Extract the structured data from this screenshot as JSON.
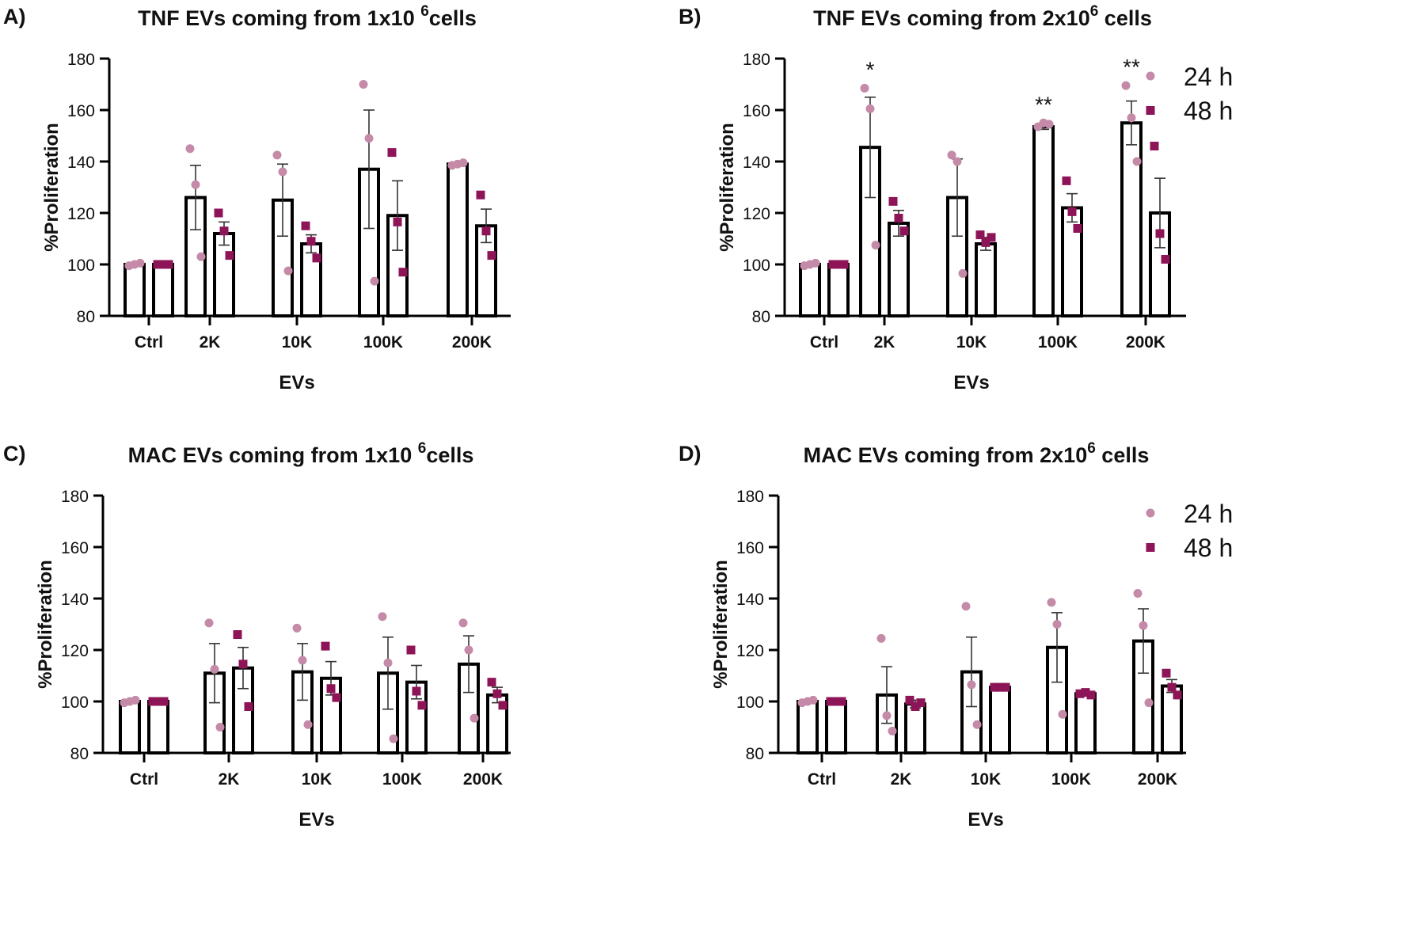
{
  "colors": {
    "series_24h": "#c48aa8",
    "series_48h": "#8e1458",
    "bar_stroke": "#000000",
    "axis": "#000000",
    "text": "#111111"
  },
  "legend": [
    "24 h",
    "48 h"
  ],
  "chart_data": [
    {
      "panel_label": "A)",
      "title_pre": "TNF EVs coming from 1x10 ",
      "title_sup": "6",
      "title_post": "cells",
      "type": "bar",
      "xlabel": "EVs",
      "ylabel": "%Proliferation",
      "ylim": [
        80,
        180
      ],
      "yticks": [
        80,
        100,
        120,
        140,
        160,
        180
      ],
      "categories": [
        "Ctrl",
        "2K",
        "10K",
        "100K",
        "200K"
      ],
      "series": [
        {
          "name": "24 h",
          "values": [
            100,
            126,
            125,
            137,
            139
          ],
          "sem": [
            0,
            12.5,
            14,
            23,
            0.5
          ],
          "points": [
            [
              99.5,
              100,
              100.5
            ],
            [
              145,
              131,
              103
            ],
            [
              142.5,
              136,
              97.5
            ],
            [
              170,
              149,
              93.5
            ],
            [
              138.5,
              139,
              139.5
            ]
          ]
        },
        {
          "name": "48 h",
          "values": [
            100,
            112,
            108,
            119,
            115
          ],
          "sem": [
            0,
            4.5,
            3.5,
            13.5,
            6.5
          ],
          "points": [
            [
              100,
              100,
              100
            ],
            [
              120,
              113,
              103.5
            ],
            [
              115,
              109,
              102.5
            ],
            [
              143.5,
              116.5,
              97
            ],
            [
              127,
              113,
              103.5
            ]
          ]
        }
      ],
      "annotations": [
        "",
        "",
        "",
        "",
        ""
      ],
      "show_legend": false
    },
    {
      "panel_label": "B)",
      "title_pre": "TNF EVs coming from 2x10",
      "title_sup": "6",
      "title_post": " cells",
      "type": "bar",
      "xlabel": "EVs",
      "ylabel": "%Proliferation",
      "ylim": [
        80,
        180
      ],
      "yticks": [
        80,
        100,
        120,
        140,
        160,
        180
      ],
      "categories": [
        "Ctrl",
        "2K",
        "10K",
        "100K",
        "200K"
      ],
      "series": [
        {
          "name": "24 h",
          "values": [
            100,
            145.5,
            126,
            153.5,
            155
          ],
          "sem": [
            0,
            19.5,
            15,
            1,
            8.5
          ],
          "points": [
            [
              99.5,
              100,
              100.5
            ],
            [
              168.5,
              160.5,
              107.5
            ],
            [
              142.5,
              140,
              96.5
            ],
            [
              153.5,
              155,
              154.5
            ],
            [
              169.5,
              157,
              140
            ]
          ]
        },
        {
          "name": "48 h",
          "values": [
            100,
            116,
            108,
            122,
            120
          ],
          "sem": [
            0,
            5,
            2.5,
            5.5,
            13.5
          ],
          "points": [
            [
              100,
              100,
              100
            ],
            [
              124.5,
              118,
              113
            ],
            [
              111.5,
              108.5,
              110.5
            ],
            [
              132.5,
              120.5,
              114
            ],
            [
              146,
              112,
              102
            ]
          ]
        }
      ],
      "annotations": [
        "",
        "*",
        "",
        "**",
        "**"
      ],
      "show_legend": true
    },
    {
      "panel_label": "C)",
      "title_pre": "MAC EVs coming from  1x10 ",
      "title_sup": "6",
      "title_post": "cells",
      "type": "bar",
      "xlabel": "EVs",
      "ylabel": "%Proliferation",
      "ylim": [
        80,
        180
      ],
      "yticks": [
        80,
        100,
        120,
        140,
        160,
        180
      ],
      "categories": [
        "Ctrl",
        "2K",
        "10K",
        "100K",
        "200K"
      ],
      "series": [
        {
          "name": "24 h",
          "values": [
            100,
            111,
            111.5,
            111,
            114.5
          ],
          "sem": [
            0,
            11.5,
            11,
            14,
            11
          ],
          "points": [
            [
              99.5,
              100,
              100.5
            ],
            [
              130.5,
              112.5,
              90
            ],
            [
              128.5,
              116,
              91
            ],
            [
              133,
              115,
              85.5
            ],
            [
              130.5,
              120,
              93.5
            ]
          ]
        },
        {
          "name": "48 h",
          "values": [
            100,
            113,
            109,
            107.5,
            102.5
          ],
          "sem": [
            0,
            8,
            6.5,
            6.5,
            3
          ],
          "points": [
            [
              100,
              100,
              100
            ],
            [
              126,
              114.5,
              98
            ],
            [
              121.5,
              105,
              101.5
            ],
            [
              120,
              104,
              98.5
            ],
            [
              107.5,
              103,
              98.5
            ]
          ]
        }
      ],
      "annotations": [
        "",
        "",
        "",
        "",
        ""
      ],
      "show_legend": false
    },
    {
      "panel_label": "D)",
      "title_pre": "MAC EVs coming from 2x10",
      "title_sup": "6",
      "title_post": " cells",
      "type": "bar",
      "xlabel": "EVs",
      "ylabel": "%Proliferation",
      "ylim": [
        80,
        180
      ],
      "yticks": [
        80,
        100,
        120,
        140,
        160,
        180
      ],
      "categories": [
        "Ctrl",
        "2K",
        "10K",
        "100K",
        "200K"
      ],
      "series": [
        {
          "name": "24 h",
          "values": [
            100,
            102.5,
            111.5,
            121,
            123.5
          ],
          "sem": [
            0,
            11,
            13.5,
            13.5,
            12.5
          ],
          "points": [
            [
              99.5,
              100,
              100.5
            ],
            [
              124.5,
              94.5,
              88.5
            ],
            [
              137,
              106.5,
              91
            ],
            [
              138.5,
              130,
              95
            ],
            [
              142,
              129.5,
              99.5
            ]
          ]
        },
        {
          "name": "48 h",
          "values": [
            100,
            99,
            105.5,
            103,
            106
          ],
          "sem": [
            0,
            1.5,
            0.5,
            0.5,
            2.5
          ],
          "points": [
            [
              100,
              100,
              100
            ],
            [
              100.5,
              98,
              99.5
            ],
            [
              105.5,
              105.5,
              105.5
            ],
            [
              103,
              103.5,
              102.5
            ],
            [
              111,
              105.5,
              102.5
            ]
          ]
        }
      ],
      "annotations": [
        "",
        "",
        "",
        "",
        ""
      ],
      "show_legend": true
    }
  ]
}
